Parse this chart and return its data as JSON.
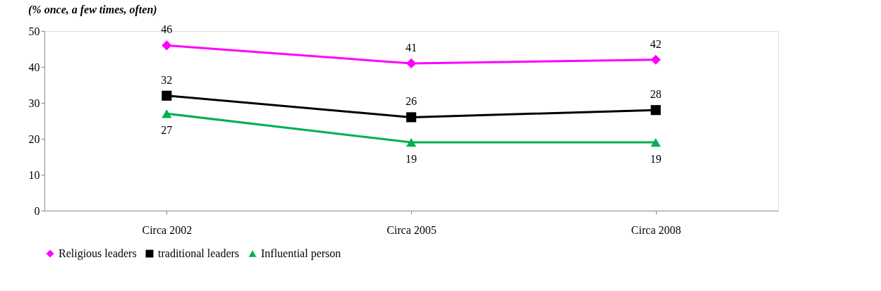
{
  "chart_data": {
    "type": "line",
    "subtitle": "(% once, a few times, often)",
    "categories": [
      "Circa 2002",
      "Circa 2005",
      "Circa 2008"
    ],
    "series": [
      {
        "name": "Religious leaders",
        "color": "#ff00ff",
        "marker": "diamond",
        "values": [
          46,
          41,
          42
        ]
      },
      {
        "name": "traditional leaders",
        "color": "#000000",
        "marker": "square",
        "values": [
          32,
          26,
          28
        ]
      },
      {
        "name": "Influential person",
        "color": "#00b050",
        "marker": "triangle",
        "values": [
          27,
          19,
          19
        ]
      }
    ],
    "ylim": [
      0,
      50
    ],
    "yticks": [
      0,
      10,
      20,
      30,
      40,
      50
    ],
    "grid": false,
    "legend": "bottom",
    "data_labels": true,
    "line_style": "solid"
  }
}
